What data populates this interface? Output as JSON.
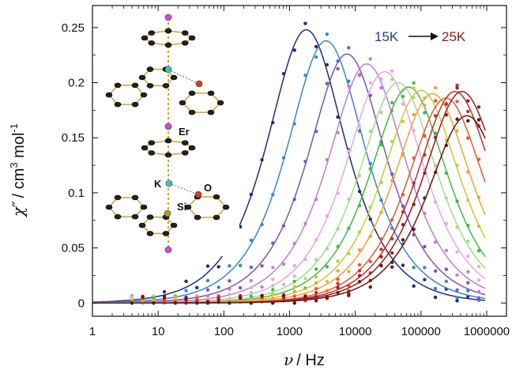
{
  "chart_data": {
    "type": "line",
    "xscale": "log",
    "xlim": [
      1,
      2000000
    ],
    "ylim": [
      -0.012,
      0.27
    ],
    "xticks": [
      1,
      10,
      100,
      1000,
      10000,
      100000,
      1000000
    ],
    "xtick_labels": [
      "1",
      "10",
      "100",
      "1000",
      "10000",
      "100000",
      "1000000"
    ],
    "yticks": [
      0,
      0.05,
      0.1,
      0.15,
      0.2,
      0.25
    ],
    "ytick_labels": [
      "0",
      "0.05",
      "0.1",
      "0.15",
      "0.2",
      "0.25"
    ],
    "xlabel": {
      "symbol": "ν",
      "unit": "/ Hz"
    },
    "ylabel": {
      "symbol": "χ″",
      "unit": "/ cm",
      "exp1": "3",
      "mid": " mol",
      "exp2": "-1"
    },
    "legend": {
      "start": "15K",
      "end": "25K",
      "start_color": "#2b3a8c",
      "end_color": "#8b1a1a",
      "placement": "top-right"
    },
    "series": [
      {
        "peak_freq": 1800,
        "peak_chi": 0.248,
        "color": "#1f2f7a"
      },
      {
        "peak_freq": 3600,
        "peak_chi": 0.238,
        "color": "#3b86c6"
      },
      {
        "peak_freq": 7500,
        "peak_chi": 0.226,
        "color": "#7a55b8"
      },
      {
        "peak_freq": 15000,
        "peak_chi": 0.217,
        "color": "#c07ed2"
      },
      {
        "peak_freq": 28000,
        "peak_chi": 0.21,
        "color": "#e7a7e1"
      },
      {
        "peak_freq": 45000,
        "peak_chi": 0.2,
        "color": "#a8d98e"
      },
      {
        "peak_freq": 65000,
        "peak_chi": 0.196,
        "color": "#44b84a"
      },
      {
        "peak_freq": 100000,
        "peak_chi": 0.193,
        "color": "#c9c93a"
      },
      {
        "peak_freq": 150000,
        "peak_chi": 0.19,
        "color": "#f0a13e"
      },
      {
        "peak_freq": 240000,
        "peak_chi": 0.186,
        "color": "#e05a3a"
      },
      {
        "peak_freq": 330000,
        "peak_chi": 0.192,
        "color": "#c0322a"
      },
      {
        "peak_freq": 420000,
        "peak_chi": 0.192,
        "color": "#9a1f1f"
      },
      {
        "peak_freq": 500000,
        "peak_chi": 0.17,
        "color": "#6e1414"
      }
    ],
    "inset_labels": [
      "Er",
      "K",
      "O",
      "Si"
    ],
    "colors": {
      "axis": "#111111",
      "background": "#ffffff"
    }
  }
}
